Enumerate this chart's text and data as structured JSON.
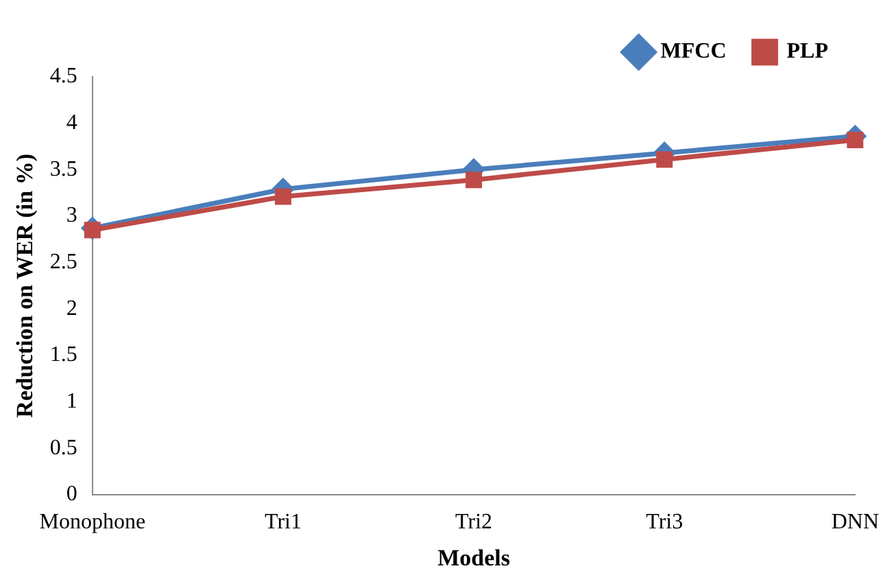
{
  "chart_data": {
    "type": "line",
    "xlabel": "Models",
    "ylabel": "Reduction on WER (in %)",
    "categories": [
      "Monophone",
      "Tri1",
      "Tri2",
      "Tri3",
      "DNN"
    ],
    "series": [
      {
        "name": "MFCC",
        "color": "#4a7ebb",
        "marker": "diamond",
        "values": [
          2.87,
          3.29,
          3.5,
          3.68,
          3.86
        ]
      },
      {
        "name": "PLP",
        "color": "#be4b48",
        "marker": "square",
        "values": [
          2.85,
          3.21,
          3.39,
          3.61,
          3.82
        ]
      }
    ],
    "ylim": [
      0,
      4.5
    ],
    "yticks": [
      0,
      0.5,
      1,
      1.5,
      2,
      2.5,
      3,
      3.5,
      4,
      4.5
    ],
    "grid": false,
    "legend": "top right",
    "line_style": "solid"
  }
}
